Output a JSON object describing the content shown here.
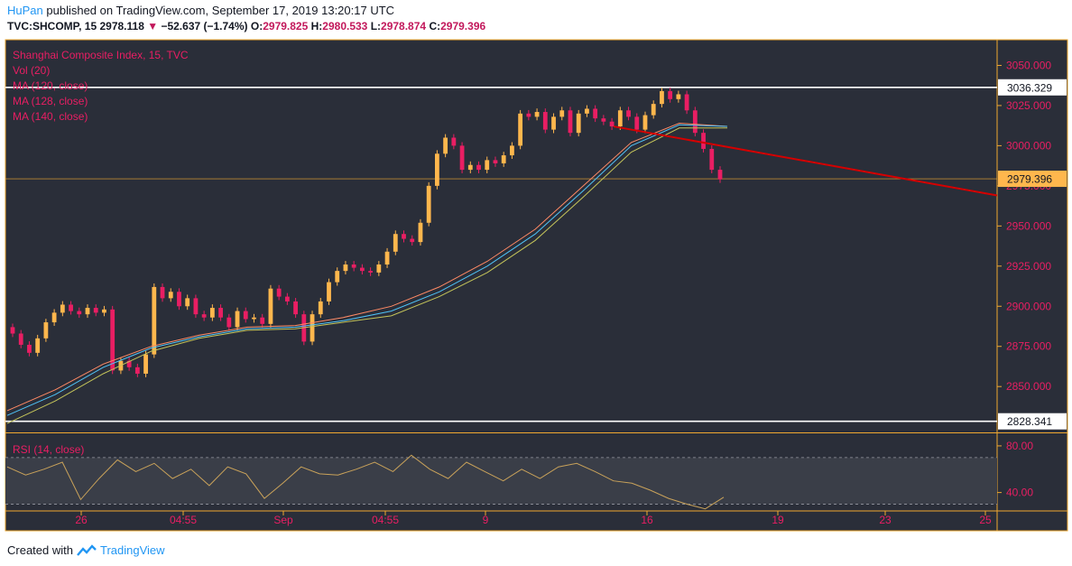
{
  "header": {
    "publisher": "HuPan",
    "published_text": "published on TradingView.com, September 17, 2019 13:20:17 UTC",
    "symbol": "TVC:SHCOMP, 15",
    "last": "2978.118",
    "change": "−52.637 (−1.74%)",
    "o_label": "O:",
    "o": "2979.825",
    "h_label": "H:",
    "h": "2980.533",
    "l_label": "L:",
    "l": "2978.874",
    "c_label": "C:",
    "c": "2979.396"
  },
  "legend": {
    "title": "Shanghai Composite Index, 15, TVC",
    "vol": "Vol (20)",
    "ma1": "MA (120, close)",
    "ma2": "MA (128, close)",
    "ma3": "MA (140, close)",
    "rsi": "RSI (14, close)"
  },
  "footer": {
    "created_with": "Created with",
    "brand": "TradingView"
  },
  "colors": {
    "background": "#2a2e39",
    "frame": "#f0a830",
    "up": "#ffb74d",
    "down": "#e91e63",
    "axis_text": "#e91e63",
    "trendline": "#d50000",
    "ma120": "#ff8a65",
    "ma128": "#4fc3f7",
    "ma140": "#c5c55a",
    "rsi_line": "#c9a25a"
  },
  "chart_data": {
    "type": "candlestick",
    "title": "Shanghai Composite Index, 15, TVC",
    "price_axis": {
      "ticks": [
        2850,
        2875,
        2900,
        2925,
        2950,
        2975,
        3000,
        3025,
        3050
      ],
      "tick_labels": [
        "2850.000",
        "2875.000",
        "2900.000",
        "2925.000",
        "2950.000",
        "2975.000",
        "3000.000",
        "3025.000",
        "3050.000"
      ],
      "range": [
        2822,
        3066
      ]
    },
    "time_axis": {
      "labels": [
        "26",
        "04:55",
        "Sep",
        "04:55",
        "9",
        "16",
        "19",
        "23",
        "25"
      ]
    },
    "price_labels": [
      {
        "value": 3036.329,
        "text": "3036.329",
        "style": "white"
      },
      {
        "value": 2828.341,
        "text": "2828.341",
        "style": "white"
      },
      {
        "value": 2979.396,
        "text": "2979.396",
        "style": "last"
      }
    ],
    "horizontal_lines": [
      3036.329,
      2828.341
    ],
    "trendline": {
      "from": {
        "x": "Sep 12",
        "y": 3012
      },
      "to": {
        "x": "Sep 25",
        "y": 2969
      }
    },
    "series": [
      {
        "name": "Shanghai Composite Index",
        "closes": [
          2883,
          2876,
          2871,
          2880,
          2890,
          2896,
          2901,
          2897,
          2895,
          2899,
          2896,
          2898,
          2860,
          2866,
          2862,
          2858,
          2870,
          2912,
          2905,
          2909,
          2900,
          2905,
          2895,
          2893,
          2899,
          2893,
          2887,
          2897,
          2892,
          2893,
          2889,
          2911,
          2906,
          2903,
          2895,
          2878,
          2895,
          2903,
          2915,
          2922,
          2926,
          2924,
          2922,
          2921,
          2926,
          2934,
          2945,
          2942,
          2940,
          2952,
          2975,
          2995,
          3005,
          3000,
          2985,
          2988,
          2985,
          2991,
          2989,
          2994,
          3000,
          3020,
          3018,
          3021,
          3010,
          3018,
          3022,
          3008,
          3020,
          3023,
          3017,
          3015,
          3012,
          3022,
          3018,
          3010,
          3019,
          3026,
          3034,
          3029,
          3032,
          3022,
          3008,
          2998,
          2985,
          2979
        ]
      },
      {
        "name": "MA (120, close)",
        "values": [
          2835,
          2848,
          2864,
          2875,
          2882,
          2887,
          2888,
          2893,
          2900,
          2912,
          2928,
          2948,
          2975,
          3002,
          3014,
          3012
        ]
      },
      {
        "name": "MA (128, close)",
        "values": [
          2832,
          2845,
          2862,
          2874,
          2881,
          2886,
          2887,
          2891,
          2897,
          2909,
          2925,
          2945,
          2972,
          3000,
          3013,
          3012
        ]
      },
      {
        "name": "MA (140, close)",
        "values": [
          2827,
          2841,
          2858,
          2872,
          2880,
          2885,
          2886,
          2890,
          2894,
          2906,
          2921,
          2941,
          2968,
          2996,
          3011,
          3011
        ]
      },
      {
        "name": "RSI (14, close)",
        "values": [
          62,
          55,
          60,
          66,
          34,
          52,
          68,
          58,
          65,
          52,
          60,
          46,
          62,
          56,
          35,
          48,
          62,
          56,
          55,
          60,
          66,
          58,
          72,
          60,
          52,
          66,
          58,
          50,
          60,
          52,
          62,
          65,
          58,
          50,
          48,
          42,
          35,
          30,
          26,
          36
        ]
      }
    ],
    "rsi_axis": {
      "ticks": [
        80,
        40
      ],
      "tick_labels": [
        "80.00",
        "40.00"
      ],
      "range": [
        25,
        90
      ],
      "bands": [
        70,
        30
      ]
    }
  }
}
